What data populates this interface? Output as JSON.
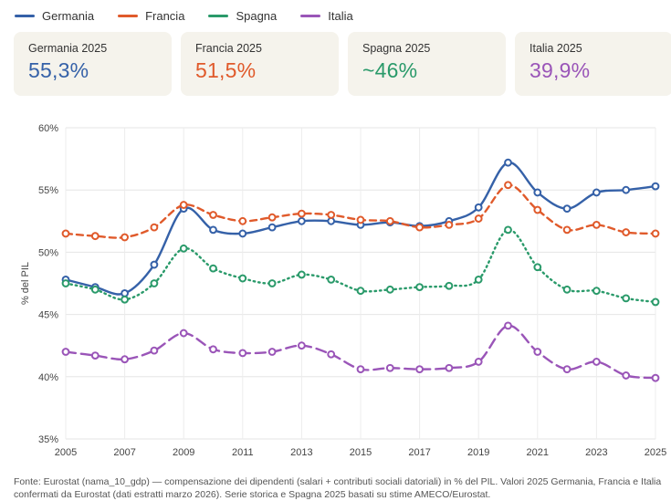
{
  "legend": [
    {
      "name": "Germania",
      "color": "#3561a8"
    },
    {
      "name": "Francia",
      "color": "#e05a2b"
    },
    {
      "name": "Spagna",
      "color": "#2a9a6a"
    },
    {
      "name": "Italia",
      "color": "#9a55b8"
    }
  ],
  "cards": [
    {
      "label": "Germania 2025",
      "value": "55,3%",
      "color": "#3561a8"
    },
    {
      "label": "Francia 2025",
      "value": "51,5%",
      "color": "#e05a2b"
    },
    {
      "label": "Spagna 2025",
      "value": "~46%",
      "color": "#2a9a6a"
    },
    {
      "label": "Italia 2025",
      "value": "39,9%",
      "color": "#9a55b8"
    }
  ],
  "footnote": "Fonte: Eurostat (nama_10_gdp) — compensazione dei dipendenti (salari + contributi sociali datoriali) in % del PIL. Valori 2025 Germania, Francia e Italia confermati da Eurostat (dati estratti marzo 2026). Serie storica e Spagna 2025 basati su stime AMECO/Eurostat.",
  "chart_data": {
    "type": "line",
    "ylabel": "% del PIL",
    "ylim": [
      35,
      60
    ],
    "yticks": [
      "35%",
      "40%",
      "45%",
      "50%",
      "55%",
      "60%"
    ],
    "ytick_values": [
      35,
      40,
      45,
      50,
      55,
      60
    ],
    "xlim": [
      2005,
      2025
    ],
    "xticks": [
      "2005",
      "2007",
      "2009",
      "2011",
      "2013",
      "2015",
      "2017",
      "2019",
      "2021",
      "2023",
      "2025"
    ],
    "grid": true,
    "x": [
      2005,
      2006,
      2007,
      2008,
      2009,
      2010,
      2011,
      2012,
      2013,
      2014,
      2015,
      2016,
      2017,
      2018,
      2019,
      2020,
      2021,
      2022,
      2023,
      2024,
      2025
    ],
    "series": [
      {
        "name": "Germania",
        "color": "#3561a8",
        "style": "solid",
        "values": [
          47.8,
          47.2,
          46.7,
          49.0,
          53.5,
          51.8,
          51.5,
          52.0,
          52.5,
          52.5,
          52.2,
          52.4,
          52.1,
          52.5,
          53.6,
          57.2,
          54.8,
          53.5,
          54.8,
          55.0,
          55.3
        ]
      },
      {
        "name": "Francia",
        "color": "#e05a2b",
        "style": "dashed",
        "values": [
          51.5,
          51.3,
          51.2,
          52.0,
          53.8,
          53.0,
          52.5,
          52.8,
          53.1,
          53.0,
          52.6,
          52.5,
          52.0,
          52.2,
          52.7,
          55.4,
          53.4,
          51.8,
          52.2,
          51.6,
          51.5
        ]
      },
      {
        "name": "Spagna",
        "color": "#2a9a6a",
        "style": "dotted",
        "values": [
          47.5,
          47.0,
          46.2,
          47.5,
          50.3,
          48.7,
          47.9,
          47.5,
          48.2,
          47.8,
          46.9,
          47.0,
          47.2,
          47.3,
          47.8,
          51.8,
          48.8,
          47.0,
          46.9,
          46.3,
          46.0
        ]
      },
      {
        "name": "Italia",
        "color": "#9a55b8",
        "style": "longdash",
        "values": [
          42.0,
          41.7,
          41.4,
          42.1,
          43.5,
          42.2,
          41.9,
          42.0,
          42.5,
          41.8,
          40.6,
          40.7,
          40.6,
          40.7,
          41.2,
          44.1,
          42.0,
          40.6,
          41.2,
          40.1,
          39.9
        ]
      }
    ]
  }
}
